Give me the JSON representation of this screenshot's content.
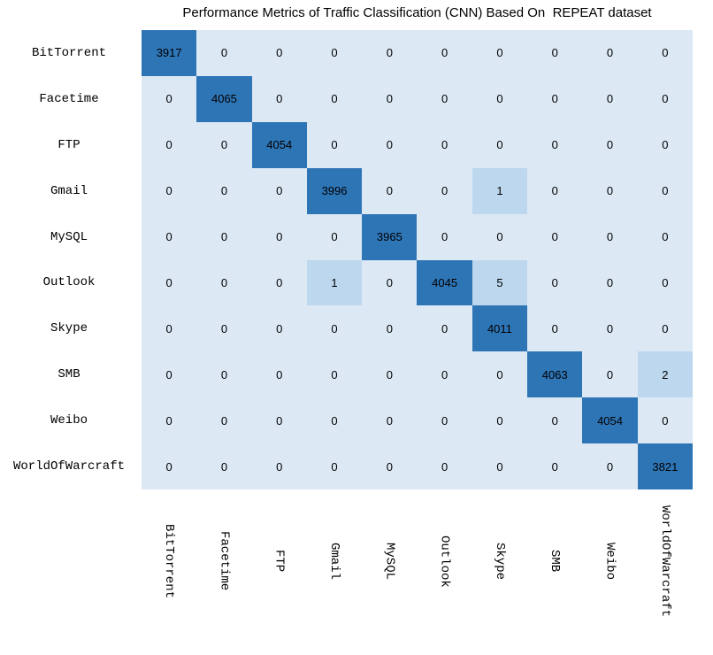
{
  "colors": {
    "diagonal_cell": "#2E75B6",
    "small_nonzero_cell": "#BDD7EE",
    "zero_cell": "#DCE9F5",
    "value_text": "#000000",
    "label_text": "#000000",
    "background": "#FFFFFF"
  },
  "chart_data": {
    "type": "heatmap",
    "subtype": "confusion-matrix",
    "title": "Performance Metrics of Traffic Classification (CNN) Based On  REPEAT dataset",
    "x_categories": [
      "BitTorrent",
      "Facetime",
      "FTP",
      "Gmail",
      "MySQL",
      "Outlook",
      "Skype",
      "SMB",
      "Weibo",
      "WorldOfWarcraft"
    ],
    "y_categories": [
      "BitTorrent",
      "Facetime",
      "FTP",
      "Gmail",
      "MySQL",
      "Outlook",
      "Skype",
      "SMB",
      "Weibo",
      "WorldOfWarcraft"
    ],
    "values": [
      [
        3917,
        0,
        0,
        0,
        0,
        0,
        0,
        0,
        0,
        0
      ],
      [
        0,
        4065,
        0,
        0,
        0,
        0,
        0,
        0,
        0,
        0
      ],
      [
        0,
        0,
        4054,
        0,
        0,
        0,
        0,
        0,
        0,
        0
      ],
      [
        0,
        0,
        0,
        3996,
        0,
        0,
        1,
        0,
        0,
        0
      ],
      [
        0,
        0,
        0,
        0,
        3965,
        0,
        0,
        0,
        0,
        0
      ],
      [
        0,
        0,
        0,
        1,
        0,
        4045,
        5,
        0,
        0,
        0
      ],
      [
        0,
        0,
        0,
        0,
        0,
        0,
        4011,
        0,
        0,
        0
      ],
      [
        0,
        0,
        0,
        0,
        0,
        0,
        0,
        4063,
        0,
        2
      ],
      [
        0,
        0,
        0,
        0,
        0,
        0,
        0,
        0,
        4054,
        0
      ],
      [
        0,
        0,
        0,
        0,
        0,
        0,
        0,
        0,
        0,
        3821
      ]
    ],
    "legend": "none",
    "grid_lines": "off",
    "column_label_rotation_deg": 90,
    "color_rule": "large diagonal values dark blue, small nonzero values medium light blue, zeros pale blue"
  }
}
